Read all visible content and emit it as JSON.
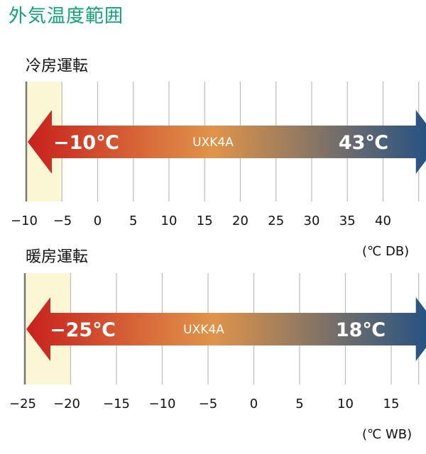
{
  "page_title": "外気温度範囲",
  "colors": {
    "title": "#13a07a",
    "arrow_cold": "#c8211d",
    "arrow_mid": "#e0944a",
    "arrow_hot": "#1b4f86",
    "highlight_band": "#fbf6d4",
    "gridline": "#bbbbbb"
  },
  "chart_data": [
    {
      "type": "range",
      "id": "cooling",
      "title": "冷房運転",
      "unit": "(℃ DB)",
      "ticks": [
        -10,
        -5,
        0,
        5,
        10,
        15,
        20,
        25,
        30,
        35,
        40
      ],
      "tick_labels": [
        "−10",
        "−5",
        "0",
        "5",
        "10",
        "15",
        "20",
        "25",
        "30",
        "35",
        "40"
      ],
      "gridlines": [
        -5,
        0,
        5,
        10,
        15,
        20,
        25,
        30,
        35,
        40,
        45
      ],
      "xlim": [
        -10,
        45
      ],
      "highlight_range": [
        -10,
        -5
      ],
      "range": [
        -10,
        43
      ],
      "range_min_label": "−10℃",
      "range_max_label": "43℃",
      "model": "UXK4A"
    },
    {
      "type": "range",
      "id": "heating",
      "title": "暖房運転",
      "unit": "(℃ WB)",
      "ticks": [
        -25,
        -20,
        -15,
        -10,
        -5,
        0,
        5,
        10,
        15
      ],
      "tick_labels": [
        "−25",
        "−20",
        "−15",
        "−10",
        "−5",
        "0",
        "5",
        "10",
        "15"
      ],
      "gridlines": [
        -20,
        -15,
        -10,
        -5,
        0,
        5,
        10,
        15,
        18
      ],
      "xlim": [
        -25,
        18
      ],
      "highlight_range": [
        -25,
        -20
      ],
      "range": [
        -25,
        18
      ],
      "range_min_label": "−25℃",
      "range_max_label": "18℃",
      "model": "UXK4A"
    }
  ]
}
